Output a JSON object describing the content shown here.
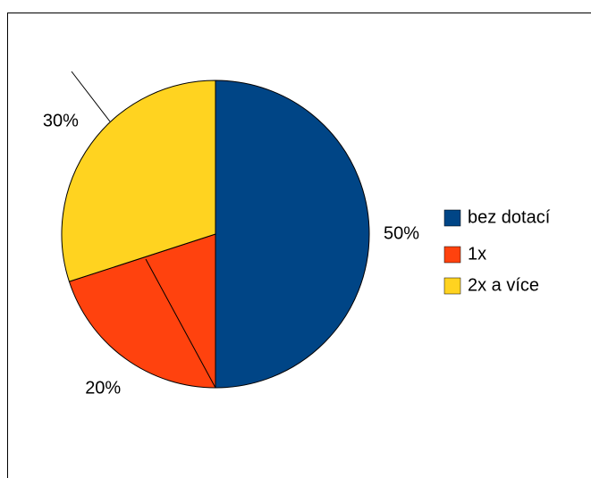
{
  "chart_data": {
    "type": "pie",
    "categories": [
      "bez dotací",
      "1x",
      "2x a více"
    ],
    "values": [
      50,
      20,
      30
    ],
    "value_labels": [
      "50%",
      "20%",
      "30%"
    ],
    "colors": [
      "#004586",
      "#ff420e",
      "#ffd320"
    ],
    "legend": "right"
  }
}
